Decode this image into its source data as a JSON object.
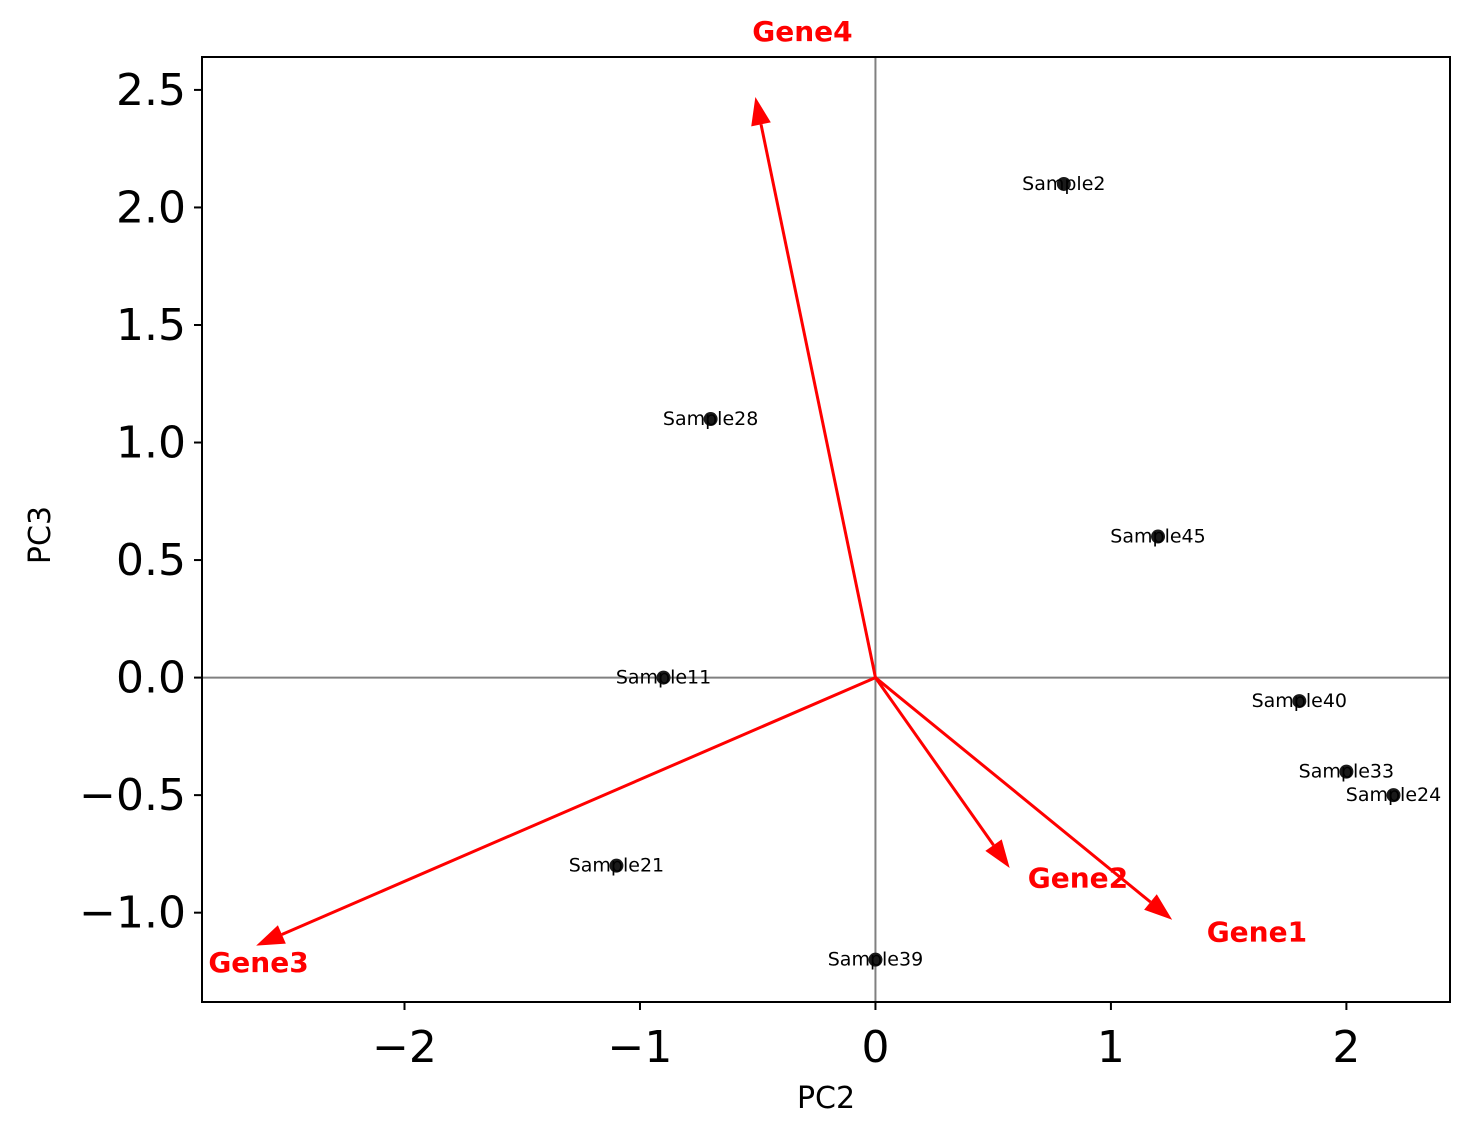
{
  "chart_data": {
    "type": "scatter",
    "title": "",
    "xlabel": "PC2",
    "ylabel": "PC3",
    "xlim": [
      -2.86,
      2.44
    ],
    "ylim": [
      -1.38,
      2.64
    ],
    "x_ticks": [
      -2,
      -1,
      0,
      1,
      2
    ],
    "x_tick_labels": [
      "−2",
      "−1",
      "0",
      "1",
      "2"
    ],
    "y_ticks": [
      -1.0,
      -0.5,
      0.0,
      0.5,
      1.0,
      1.5,
      2.0,
      2.5
    ],
    "y_tick_labels": [
      "−1.0",
      "−0.5",
      "0.0",
      "0.5",
      "1.0",
      "1.5",
      "2.0",
      "2.5"
    ],
    "grid": false,
    "reference_lines": {
      "x": 0,
      "y": 0,
      "color": "#808080"
    },
    "point_color": "#1a1a1a",
    "arrow_color": "#ff0000",
    "points": [
      {
        "label": "Sample2",
        "x": 0.8,
        "y": 2.1
      },
      {
        "label": "Sample28",
        "x": -0.7,
        "y": 1.1
      },
      {
        "label": "Sample45",
        "x": 1.2,
        "y": 0.6
      },
      {
        "label": "Sample11",
        "x": -0.9,
        "y": 0.0
      },
      {
        "label": "Sample40",
        "x": 1.8,
        "y": -0.1
      },
      {
        "label": "Sample33",
        "x": 2.0,
        "y": -0.4
      },
      {
        "label": "Sample24",
        "x": 2.2,
        "y": -0.5
      },
      {
        "label": "Sample21",
        "x": -1.1,
        "y": -0.8
      },
      {
        "label": "Sample39",
        "x": 0.0,
        "y": -1.2
      }
    ],
    "loadings": [
      {
        "name": "Gene4",
        "x": -0.51,
        "y": 2.47,
        "label_x": -0.31,
        "label_y": 2.75
      },
      {
        "name": "Gene1",
        "x": 1.26,
        "y": -1.03,
        "label_x": 1.62,
        "label_y": -1.08
      },
      {
        "name": "Gene2",
        "x": 0.57,
        "y": -0.81,
        "label_x": 0.86,
        "label_y": -0.85
      },
      {
        "name": "Gene3",
        "x": -2.63,
        "y": -1.14,
        "label_x": -2.62,
        "label_y": -1.21
      }
    ]
  }
}
